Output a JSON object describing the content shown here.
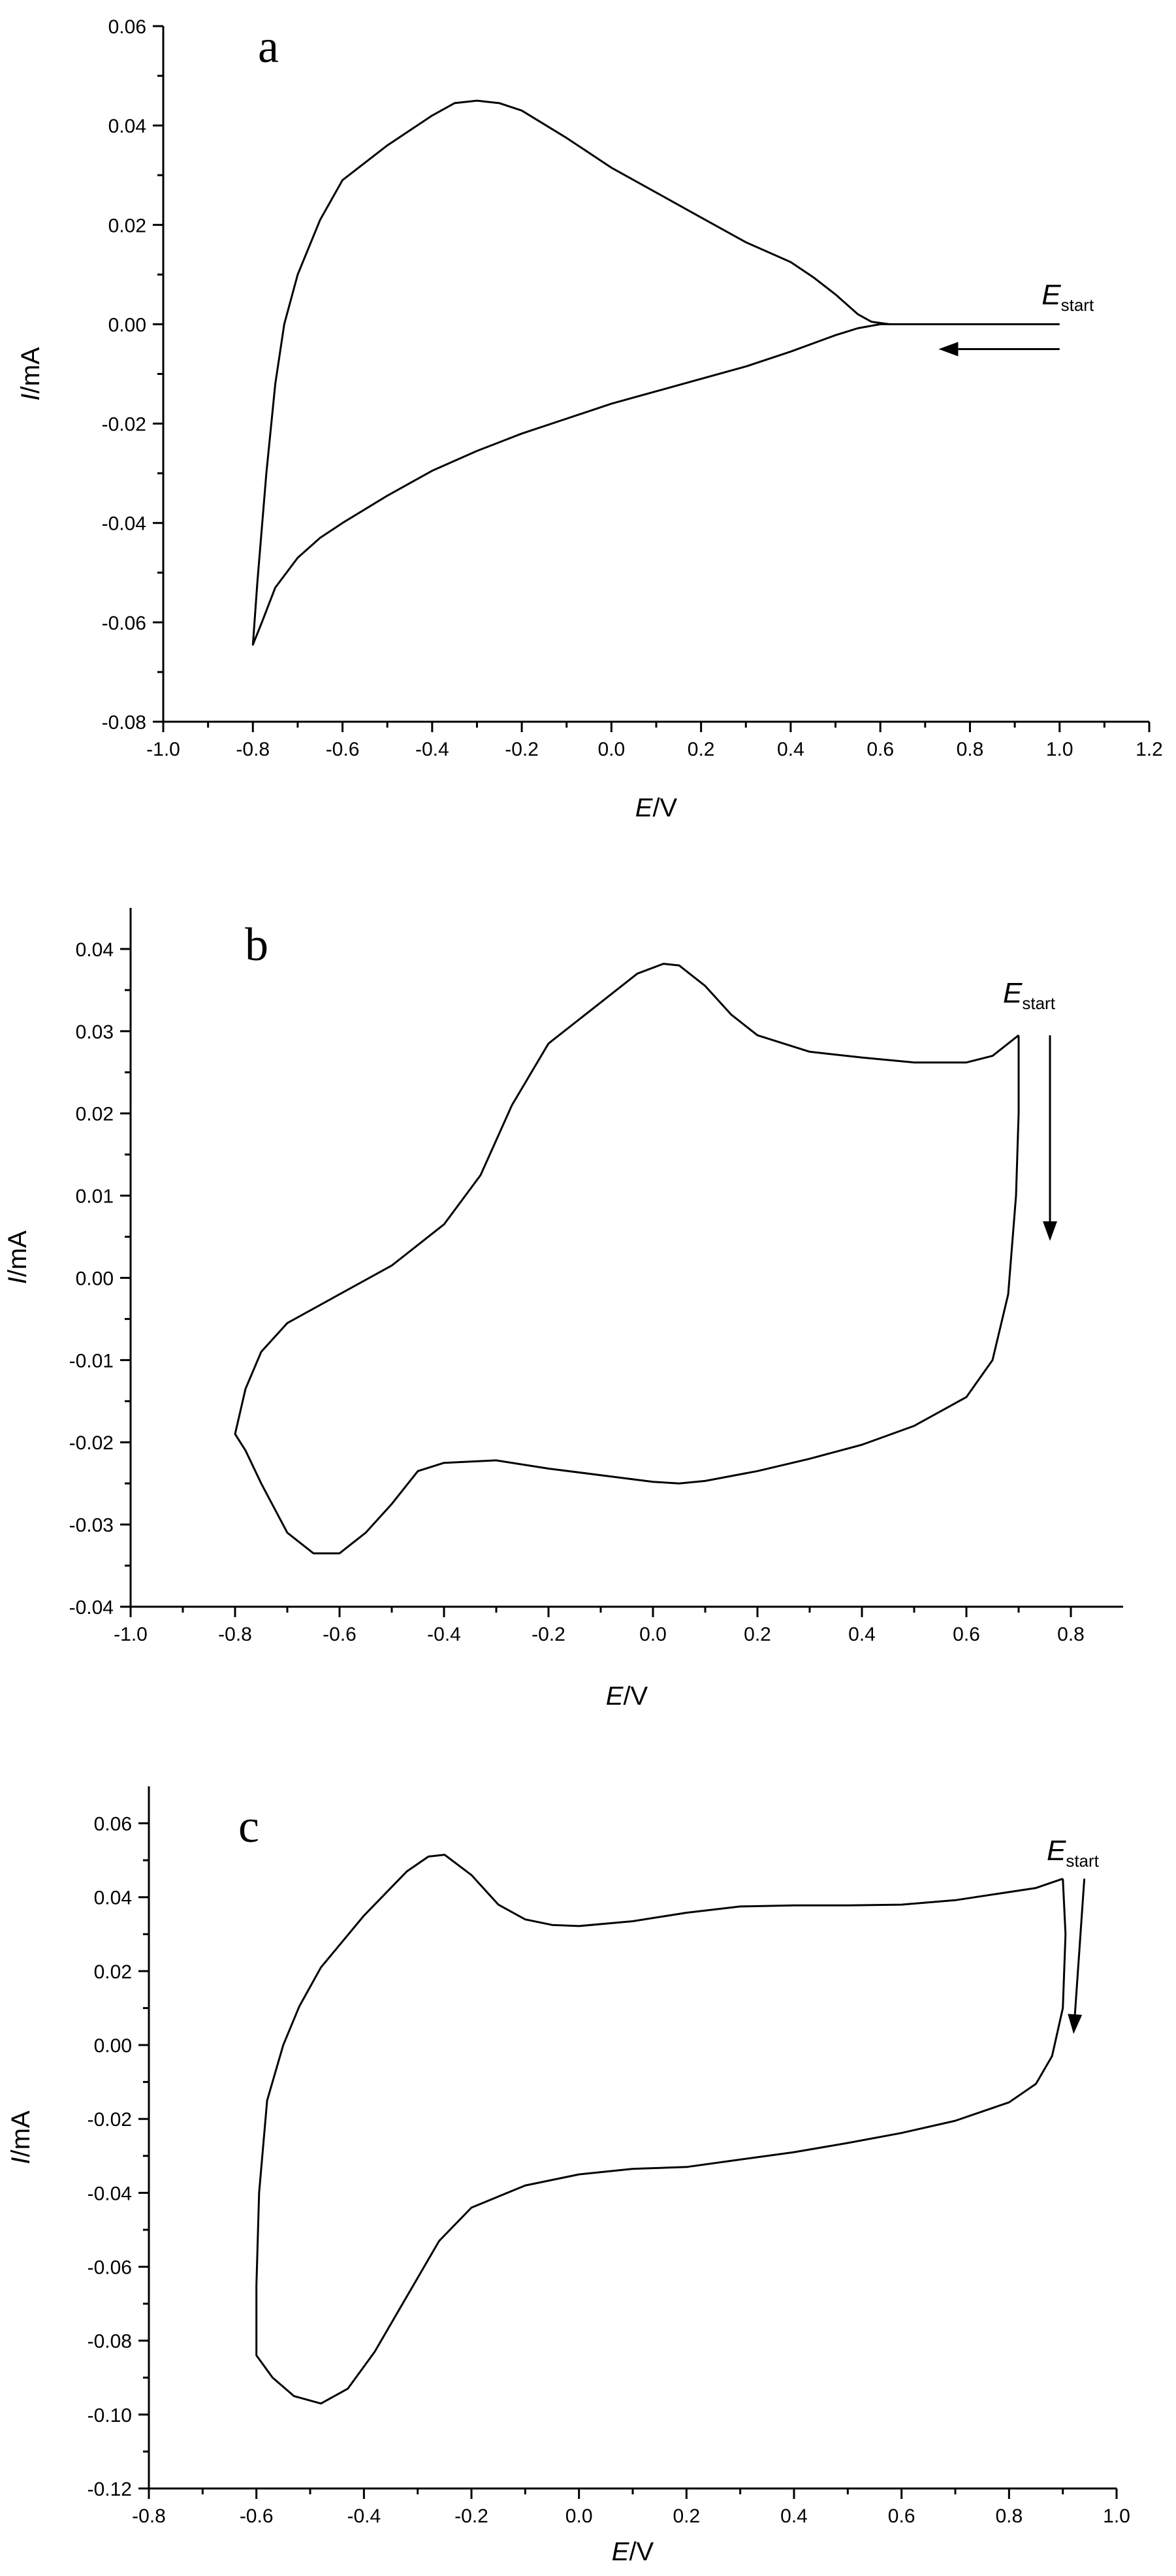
{
  "chart_data": [
    {
      "type": "line",
      "panel_label": "a",
      "xlabel": {
        "italic": "E",
        "rest": "/V"
      },
      "ylabel": {
        "italic": "I",
        "rest": "/mA"
      },
      "xlim": [
        -1.0,
        1.2
      ],
      "ylim": [
        -0.08,
        0.06
      ],
      "x_ticks": [
        -1.0,
        -0.8,
        -0.6,
        -0.4,
        -0.2,
        0.0,
        0.2,
        0.4,
        0.6,
        0.8,
        1.0,
        1.2
      ],
      "x_tick_labels": [
        "-1.0",
        "-0.8",
        "-0.6",
        "-0.4",
        "-0.2",
        "0.0",
        "0.2",
        "0.4",
        "0.6",
        "0.8",
        "1.0",
        "1.2"
      ],
      "y_ticks": [
        -0.08,
        -0.06,
        -0.04,
        -0.02,
        0.0,
        0.02,
        0.04,
        0.06
      ],
      "y_tick_labels": [
        "-0.08",
        "-0.06",
        "-0.04",
        "-0.02",
        "0.00",
        "0.02",
        "0.04",
        "0.06"
      ],
      "grid": false,
      "annotation": {
        "text": "E",
        "sub": "start",
        "x": 0.96,
        "y": 0.004
      },
      "arrow": {
        "from": [
          1.0,
          -0.005
        ],
        "to": [
          0.73,
          -0.005
        ]
      },
      "series": [
        {
          "points": [
            [
              1.0,
              0.0
            ],
            [
              0.9,
              0.0
            ],
            [
              0.8,
              0.0
            ],
            [
              0.7,
              0.0
            ],
            [
              0.62,
              0.0
            ],
            [
              0.58,
              0.0005
            ],
            [
              0.55,
              0.002
            ],
            [
              0.5,
              0.006
            ],
            [
              0.45,
              0.0095
            ],
            [
              0.4,
              0.0125
            ],
            [
              0.3,
              0.0165
            ],
            [
              0.2,
              0.0215
            ],
            [
              0.1,
              0.0265
            ],
            [
              0.0,
              0.0315
            ],
            [
              -0.1,
              0.0375
            ],
            [
              -0.2,
              0.043
            ],
            [
              -0.25,
              0.0445
            ],
            [
              -0.3,
              0.045
            ],
            [
              -0.35,
              0.0445
            ],
            [
              -0.4,
              0.042
            ],
            [
              -0.5,
              0.036
            ],
            [
              -0.6,
              0.029
            ],
            [
              -0.65,
              0.021
            ],
            [
              -0.7,
              0.01
            ],
            [
              -0.73,
              0.0
            ],
            [
              -0.75,
              -0.012
            ],
            [
              -0.77,
              -0.03
            ],
            [
              -0.79,
              -0.052
            ],
            [
              -0.8,
              -0.0645
            ],
            [
              -0.78,
              -0.06
            ],
            [
              -0.75,
              -0.053
            ],
            [
              -0.7,
              -0.047
            ],
            [
              -0.65,
              -0.043
            ],
            [
              -0.6,
              -0.04
            ],
            [
              -0.5,
              -0.0345
            ],
            [
              -0.4,
              -0.0295
            ],
            [
              -0.3,
              -0.0255
            ],
            [
              -0.2,
              -0.022
            ],
            [
              -0.1,
              -0.019
            ],
            [
              0.0,
              -0.016
            ],
            [
              0.1,
              -0.0135
            ],
            [
              0.2,
              -0.011
            ],
            [
              0.3,
              -0.0085
            ],
            [
              0.4,
              -0.0055
            ],
            [
              0.5,
              -0.0022
            ],
            [
              0.55,
              -0.0008
            ],
            [
              0.6,
              0.0
            ],
            [
              0.7,
              0.0
            ],
            [
              0.8,
              0.0
            ],
            [
              0.9,
              0.0
            ],
            [
              1.0,
              0.0
            ]
          ]
        }
      ]
    },
    {
      "type": "line",
      "panel_label": "b",
      "xlabel": {
        "italic": "E",
        "rest": "/V"
      },
      "ylabel": {
        "italic": "I",
        "rest": "/mA"
      },
      "xlim": [
        -1.0,
        0.9
      ],
      "ylim": [
        -0.04,
        0.045
      ],
      "x_ticks": [
        -1.0,
        -0.8,
        -0.6,
        -0.4,
        -0.2,
        0.0,
        0.2,
        0.4,
        0.6,
        0.8
      ],
      "x_tick_labels": [
        "-1.0",
        "-0.8",
        "-0.6",
        "-0.4",
        "-0.2",
        "0.0",
        "0.2",
        "0.4",
        "0.6",
        "0.8"
      ],
      "y_ticks": [
        -0.04,
        -0.03,
        -0.02,
        -0.01,
        0.0,
        0.01,
        0.02,
        0.03,
        0.04
      ],
      "y_tick_labels": [
        "-0.04",
        "-0.03",
        "-0.02",
        "-0.01",
        "0.00",
        "0.01",
        "0.02",
        "0.03",
        "0.04"
      ],
      "grid": false,
      "annotation": {
        "text": "E",
        "sub": "start",
        "x": 0.67,
        "y": 0.0335
      },
      "arrow": {
        "from": [
          0.76,
          0.0295
        ],
        "to": [
          0.76,
          0.0045
        ]
      },
      "series": [
        {
          "points": [
            [
              0.7,
              0.0295
            ],
            [
              0.65,
              0.027
            ],
            [
              0.6,
              0.0262
            ],
            [
              0.5,
              0.0262
            ],
            [
              0.4,
              0.0268
            ],
            [
              0.3,
              0.0275
            ],
            [
              0.2,
              0.0295
            ],
            [
              0.15,
              0.032
            ],
            [
              0.1,
              0.0355
            ],
            [
              0.05,
              0.038
            ],
            [
              0.02,
              0.0382
            ],
            [
              -0.03,
              0.037
            ],
            [
              -0.1,
              0.0335
            ],
            [
              -0.2,
              0.0285
            ],
            [
              -0.27,
              0.021
            ],
            [
              -0.33,
              0.0125
            ],
            [
              -0.4,
              0.0065
            ],
            [
              -0.5,
              0.0015
            ],
            [
              -0.6,
              -0.002
            ],
            [
              -0.7,
              -0.0055
            ],
            [
              -0.75,
              -0.009
            ],
            [
              -0.78,
              -0.0135
            ],
            [
              -0.8,
              -0.019
            ],
            [
              -0.78,
              -0.021
            ],
            [
              -0.75,
              -0.025
            ],
            [
              -0.7,
              -0.031
            ],
            [
              -0.65,
              -0.0335
            ],
            [
              -0.6,
              -0.0335
            ],
            [
              -0.55,
              -0.031
            ],
            [
              -0.5,
              -0.0275
            ],
            [
              -0.45,
              -0.0235
            ],
            [
              -0.4,
              -0.0225
            ],
            [
              -0.3,
              -0.0222
            ],
            [
              -0.2,
              -0.0232
            ],
            [
              -0.1,
              -0.024
            ],
            [
              0.0,
              -0.0248
            ],
            [
              0.05,
              -0.025
            ],
            [
              0.1,
              -0.0247
            ],
            [
              0.2,
              -0.0235
            ],
            [
              0.3,
              -0.022
            ],
            [
              0.4,
              -0.0203
            ],
            [
              0.5,
              -0.018
            ],
            [
              0.6,
              -0.0145
            ],
            [
              0.65,
              -0.01
            ],
            [
              0.68,
              -0.002
            ],
            [
              0.695,
              0.01
            ],
            [
              0.7,
              0.02
            ],
            [
              0.7,
              0.0295
            ]
          ]
        }
      ]
    },
    {
      "type": "line",
      "panel_label": "c",
      "xlabel": {
        "italic": "E",
        "rest": "/V"
      },
      "ylabel": {
        "italic": "I",
        "rest": "/mA"
      },
      "xlim": [
        -0.8,
        1.0
      ],
      "ylim": [
        -0.12,
        0.07
      ],
      "x_ticks": [
        -0.8,
        -0.6,
        -0.4,
        -0.2,
        0.0,
        0.2,
        0.4,
        0.6,
        0.8,
        1.0
      ],
      "x_tick_labels": [
        "-0.8",
        "-0.6",
        "-0.4",
        "-0.2",
        "0.0",
        "0.2",
        "0.4",
        "0.6",
        "0.8",
        "1.0"
      ],
      "y_ticks": [
        -0.12,
        -0.1,
        -0.08,
        -0.06,
        -0.04,
        -0.02,
        0.0,
        0.02,
        0.04,
        0.06
      ],
      "y_tick_labels": [
        "-0.12",
        "-0.10",
        "-0.08",
        "-0.06",
        "-0.04",
        "-0.02",
        "0.00",
        "0.02",
        "0.04",
        "0.06"
      ],
      "grid": false,
      "annotation": {
        "text": "E",
        "sub": "start",
        "x": 0.87,
        "y": 0.05
      },
      "arrow": {
        "from": [
          0.94,
          0.045
        ],
        "to": [
          0.92,
          0.003
        ]
      },
      "series": [
        {
          "points": [
            [
              0.9,
              0.045
            ],
            [
              0.85,
              0.0425
            ],
            [
              0.7,
              0.0392
            ],
            [
              0.6,
              0.038
            ],
            [
              0.5,
              0.0378
            ],
            [
              0.4,
              0.0378
            ],
            [
              0.3,
              0.0375
            ],
            [
              0.2,
              0.0358
            ],
            [
              0.1,
              0.0335
            ],
            [
              0.0,
              0.0322
            ],
            [
              -0.05,
              0.0325
            ],
            [
              -0.1,
              0.034
            ],
            [
              -0.15,
              0.038
            ],
            [
              -0.2,
              0.046
            ],
            [
              -0.25,
              0.0515
            ],
            [
              -0.28,
              0.051
            ],
            [
              -0.32,
              0.047
            ],
            [
              -0.4,
              0.035
            ],
            [
              -0.48,
              0.021
            ],
            [
              -0.52,
              0.0105
            ],
            [
              -0.55,
              0.0
            ],
            [
              -0.58,
              -0.015
            ],
            [
              -0.595,
              -0.04
            ],
            [
              -0.6,
              -0.065
            ],
            [
              -0.6,
              -0.084
            ],
            [
              -0.57,
              -0.09
            ],
            [
              -0.53,
              -0.095
            ],
            [
              -0.48,
              -0.097
            ],
            [
              -0.43,
              -0.093
            ],
            [
              -0.38,
              -0.083
            ],
            [
              -0.32,
              -0.068
            ],
            [
              -0.26,
              -0.053
            ],
            [
              -0.2,
              -0.044
            ],
            [
              -0.1,
              -0.038
            ],
            [
              0.0,
              -0.035
            ],
            [
              0.1,
              -0.0335
            ],
            [
              0.2,
              -0.033
            ],
            [
              0.3,
              -0.031
            ],
            [
              0.4,
              -0.029
            ],
            [
              0.5,
              -0.0265
            ],
            [
              0.6,
              -0.0238
            ],
            [
              0.7,
              -0.0205
            ],
            [
              0.8,
              -0.0155
            ],
            [
              0.85,
              -0.0105
            ],
            [
              0.88,
              -0.003
            ],
            [
              0.9,
              0.01
            ],
            [
              0.905,
              0.03
            ],
            [
              0.9,
              0.045
            ]
          ]
        }
      ]
    }
  ]
}
